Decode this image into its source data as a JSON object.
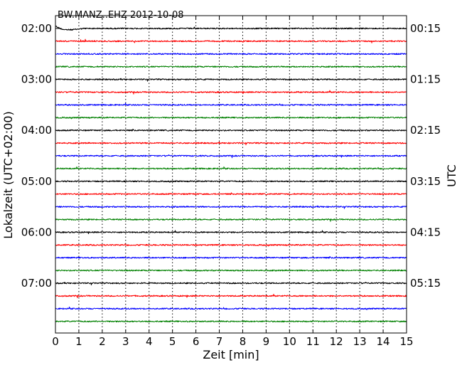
{
  "chart_data": {
    "type": "line",
    "title": "BW.MANZ..EHZ 2012-10-08",
    "xlabel": "Zeit  [min]",
    "ylabel": "Lokalzeit (UTC+02:00)",
    "ylabel_right": "UTC",
    "x_range": [
      0,
      15
    ],
    "x_ticks": [
      "0",
      "1",
      "2",
      "3",
      "4",
      "5",
      "6",
      "7",
      "8",
      "9",
      "10",
      "11",
      "12",
      "13",
      "14",
      "15"
    ],
    "y_ticks_left": [
      "02:00",
      "03:00",
      "04:00",
      "05:00",
      "06:00",
      "07:00"
    ],
    "y_ticks_right": [
      "00:15",
      "01:15",
      "02:15",
      "03:15",
      "04:15",
      "05:15"
    ],
    "row_minutes": 15,
    "row_count": 24,
    "row_colors": [
      "#000000",
      "#ff0000",
      "#0000ff",
      "#008000"
    ],
    "grid": "vertical dotted",
    "first_trace_start_transient": true
  }
}
